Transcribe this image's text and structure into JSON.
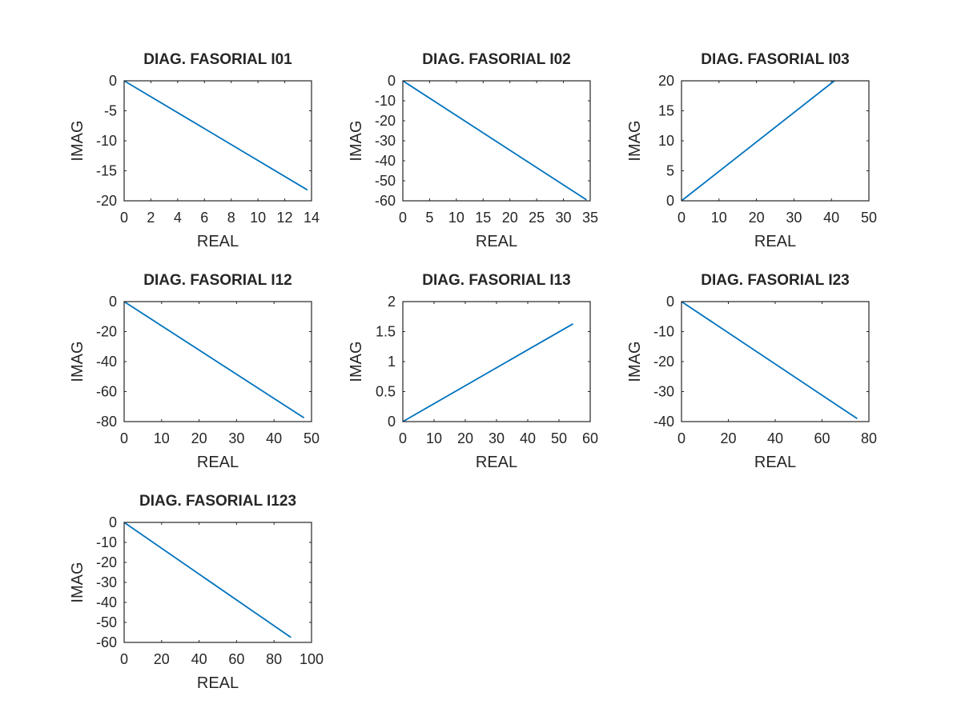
{
  "colors": {
    "line": "#0072bd",
    "axes": "#262626",
    "background": "#ffffff"
  },
  "chart_data": [
    {
      "type": "line",
      "title": "DIAG. FASORIAL I01",
      "xlabel": "REAL",
      "ylabel": "IMAG",
      "xlim": [
        0,
        14
      ],
      "ylim": [
        -20,
        0
      ],
      "xticks": [
        0,
        2,
        4,
        6,
        8,
        10,
        12,
        14
      ],
      "yticks": [
        0,
        -5,
        -10,
        -15,
        -20
      ],
      "grid": false,
      "series": [
        {
          "x": [
            0,
            13.7
          ],
          "y": [
            0,
            -18.2
          ]
        }
      ]
    },
    {
      "type": "line",
      "title": "DIAG. FASORIAL I02",
      "xlabel": "REAL",
      "ylabel": "IMAG",
      "xlim": [
        0,
        35
      ],
      "ylim": [
        -60,
        0
      ],
      "xticks": [
        0,
        5,
        10,
        15,
        20,
        25,
        30,
        35
      ],
      "yticks": [
        0,
        -10,
        -20,
        -30,
        -40,
        -50,
        -60
      ],
      "grid": false,
      "series": [
        {
          "x": [
            0,
            34.3
          ],
          "y": [
            0,
            -59.5
          ]
        }
      ]
    },
    {
      "type": "line",
      "title": "DIAG. FASORIAL I03",
      "xlabel": "REAL",
      "ylabel": "IMAG",
      "xlim": [
        0,
        50
      ],
      "ylim": [
        0,
        20
      ],
      "xticks": [
        0,
        10,
        20,
        30,
        40,
        50
      ],
      "yticks": [
        0,
        5,
        10,
        15,
        20
      ],
      "grid": false,
      "series": [
        {
          "x": [
            0,
            40.8
          ],
          "y": [
            0,
            20
          ]
        }
      ]
    },
    {
      "type": "line",
      "title": "DIAG. FASORIAL I12",
      "xlabel": "REAL",
      "ylabel": "IMAG",
      "xlim": [
        0,
        50
      ],
      "ylim": [
        -80,
        0
      ],
      "xticks": [
        0,
        10,
        20,
        30,
        40,
        50
      ],
      "yticks": [
        0,
        -20,
        -40,
        -60,
        -80
      ],
      "grid": false,
      "series": [
        {
          "x": [
            0,
            48
          ],
          "y": [
            0,
            -77.5
          ]
        }
      ]
    },
    {
      "type": "line",
      "title": "DIAG. FASORIAL I13",
      "xlabel": "REAL",
      "ylabel": "IMAG",
      "xlim": [
        0,
        60
      ],
      "ylim": [
        0,
        2
      ],
      "xticks": [
        0,
        10,
        20,
        30,
        40,
        50,
        60
      ],
      "yticks": [
        0,
        0.5,
        1,
        1.5,
        2
      ],
      "grid": false,
      "series": [
        {
          "x": [
            0,
            54.5
          ],
          "y": [
            0,
            1.63
          ]
        }
      ]
    },
    {
      "type": "line",
      "title": "DIAG. FASORIAL I23",
      "xlabel": "REAL",
      "ylabel": "IMAG",
      "xlim": [
        0,
        80
      ],
      "ylim": [
        -40,
        0
      ],
      "xticks": [
        0,
        20,
        40,
        60,
        80
      ],
      "yticks": [
        0,
        -10,
        -20,
        -30,
        -40
      ],
      "grid": false,
      "series": [
        {
          "x": [
            0,
            75
          ],
          "y": [
            0,
            -39
          ]
        }
      ]
    },
    {
      "type": "line",
      "title": "DIAG. FASORIAL I123",
      "xlabel": "REAL",
      "ylabel": "IMAG",
      "xlim": [
        0,
        100
      ],
      "ylim": [
        -60,
        0
      ],
      "xticks": [
        0,
        20,
        40,
        60,
        80,
        100
      ],
      "yticks": [
        0,
        -10,
        -20,
        -30,
        -40,
        -50,
        -60
      ],
      "grid": false,
      "series": [
        {
          "x": [
            0,
            89
          ],
          "y": [
            0,
            -57.5
          ]
        }
      ]
    }
  ]
}
